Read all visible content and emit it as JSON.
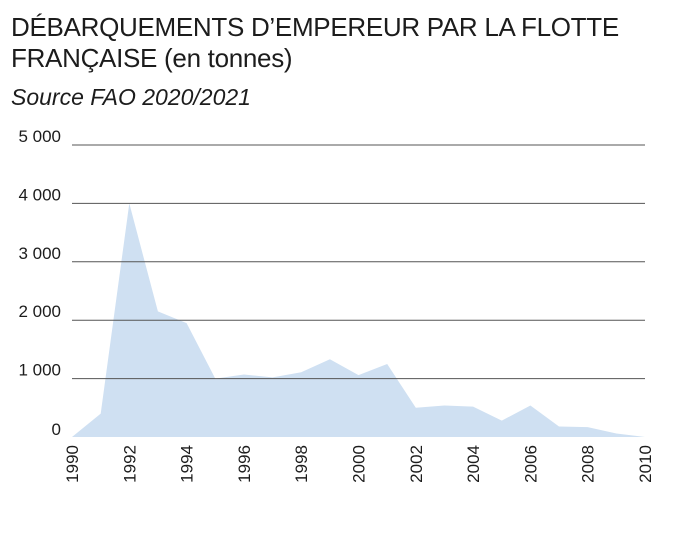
{
  "title_line1": "DÉBARQUEMENTS D’EMPEREUR PAR LA FLOTTE",
  "title_line2": "FRANÇAISE",
  "title_unit": "(en tonnes)",
  "subtitle": "Source FAO 2020/2021",
  "chart_data": {
    "type": "area",
    "title": "DÉBARQUEMENTS D’EMPEREUR PAR LA FLOTTE FRANÇAISE (en tonnes)",
    "subtitle": "Source FAO 2020/2021",
    "x": [
      1990,
      1991,
      1992,
      1993,
      1994,
      1995,
      1996,
      1997,
      1998,
      1999,
      2000,
      2001,
      2002,
      2003,
      2004,
      2005,
      2006,
      2007,
      2008,
      2009,
      2010
    ],
    "series": [
      {
        "values": [
          0,
          400,
          4000,
          2150,
          1950,
          1000,
          1070,
          1020,
          1110,
          1330,
          1060,
          1250,
          500,
          540,
          520,
          280,
          540,
          180,
          170,
          60,
          0
        ]
      }
    ],
    "ylim": [
      0,
      5000
    ],
    "yticks": [
      0,
      1000,
      2000,
      3000,
      4000,
      5000
    ],
    "ytick_labels": [
      "0",
      "1 000",
      "2 000",
      "3 000",
      "4 000",
      "5 000"
    ],
    "xticks": [
      1990,
      1992,
      1994,
      1996,
      1998,
      2000,
      2002,
      2004,
      2006,
      2008,
      2010
    ],
    "xtick_labels": [
      "1990",
      "1992",
      "1994",
      "1996",
      "1998",
      "2000",
      "2002",
      "2004",
      "2006",
      "2008",
      "2010"
    ],
    "xlabel": "",
    "ylabel": "",
    "grid": true,
    "colors": {
      "area": "#cfe0f2",
      "grid": "#555555",
      "text": "#1c1c1c"
    }
  }
}
